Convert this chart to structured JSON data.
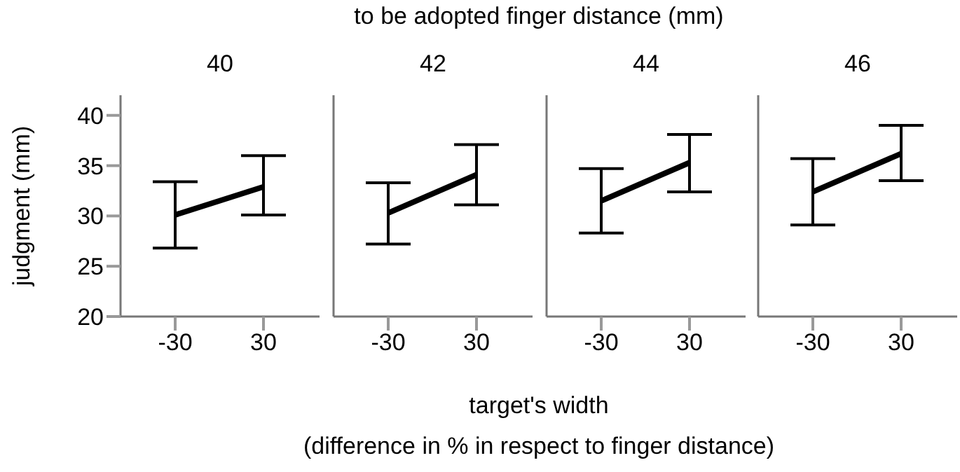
{
  "chart_data": [
    {
      "type": "line",
      "title": "40",
      "ylabel": "judgment (mm)",
      "annotations": [
        "to be adopted finger distance (mm)",
        "target's width",
        "(difference in % in respect to finger distance)"
      ],
      "categories": [
        "-30",
        "30"
      ],
      "ylim": [
        20,
        42
      ],
      "yticks": [
        20,
        25,
        30,
        35,
        40
      ],
      "marker": "none",
      "series": [
        {
          "color": "#000000",
          "values": [
            30.1,
            32.9
          ],
          "errors": [
            [
              26.8,
              33.4
            ],
            [
              30.1,
              36.0
            ]
          ]
        }
      ]
    },
    {
      "type": "line",
      "title": "42",
      "categories": [
        "-30",
        "30"
      ],
      "ylim": [
        20,
        42
      ],
      "tick_labels": "x",
      "marker": "none",
      "series": [
        {
          "color": "#000000",
          "values": [
            30.3,
            34.1
          ],
          "errors": [
            [
              27.2,
              33.3
            ],
            [
              31.1,
              37.1
            ]
          ]
        }
      ]
    },
    {
      "type": "line",
      "title": "44",
      "categories": [
        "-30",
        "30"
      ],
      "ylim": [
        20,
        42
      ],
      "tick_labels": "x",
      "marker": "none",
      "series": [
        {
          "color": "#000000",
          "values": [
            31.5,
            35.3
          ],
          "errors": [
            [
              28.3,
              34.7
            ],
            [
              32.4,
              38.1
            ]
          ]
        }
      ]
    },
    {
      "type": "line",
      "title": "46",
      "categories": [
        "-30",
        "30"
      ],
      "ylim": [
        20,
        42
      ],
      "tick_labels": "x",
      "marker": "none",
      "series": [
        {
          "color": "#000000",
          "values": [
            32.4,
            36.2
          ],
          "errors": [
            [
              29.1,
              35.7
            ],
            [
              33.5,
              39.0
            ]
          ]
        }
      ]
    }
  ]
}
